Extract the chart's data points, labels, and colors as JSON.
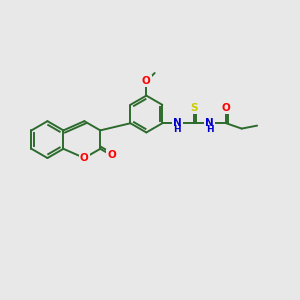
{
  "fig_bg": "#e8e8e8",
  "bond_color": "#2d6b2d",
  "bond_width": 1.4,
  "atom_colors": {
    "O": "#ff0000",
    "N": "#0000cc",
    "S": "#cccc00",
    "C": "#2d6b2d"
  },
  "font_size": 7.5
}
